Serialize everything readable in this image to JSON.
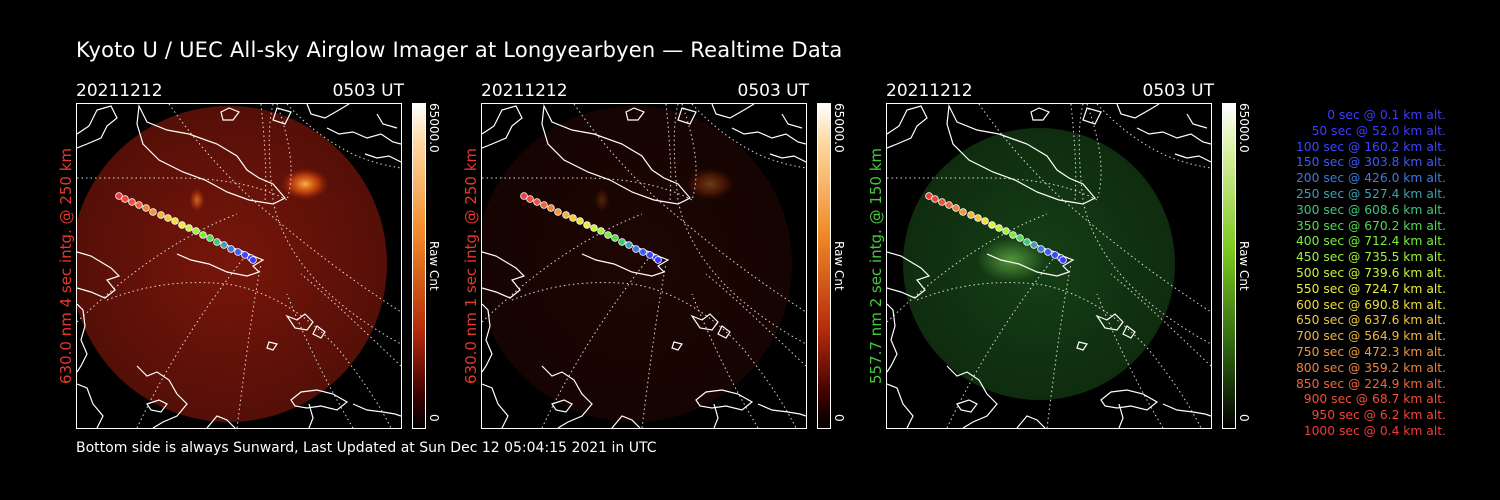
{
  "title": "Kyoto U / UEC All-sky Airglow Imager at Longyearbyen — Realtime Data",
  "footer": "Bottom side is always Sunward, Last Updated at Sun Dec 12 05:04:15 2021 in UTC",
  "panels": [
    {
      "date": "20211212",
      "time": "0503 UT",
      "side_label": "630.0 nm 4 sec intg. @ 250 km",
      "side_color": "#e8382a",
      "colorbar_max": "65000.0",
      "colorbar_unit": "Raw Cnt",
      "colorbar_min": "0",
      "tone": "red",
      "brightness": "high"
    },
    {
      "date": "20211212",
      "time": "0503 UT",
      "side_label": "630.0 nm 1 sec intg. @ 250 km",
      "side_color": "#e8382a",
      "colorbar_max": "65000.0",
      "colorbar_unit": "Raw Cnt",
      "colorbar_min": "0",
      "tone": "red",
      "brightness": "low"
    },
    {
      "date": "20211212",
      "time": "0503 UT",
      "side_label": "557.7 nm 2 sec intg. @ 150 km",
      "side_color": "#46c83c",
      "colorbar_max": "65000.0",
      "colorbar_unit": "Raw Cnt",
      "colorbar_min": "0",
      "tone": "green",
      "brightness": "mid"
    }
  ],
  "legend": [
    {
      "text": "0 sec @   0.1 km alt.",
      "color": "#3c3cff"
    },
    {
      "text": "50 sec @  52.0 km alt.",
      "color": "#3c3cff"
    },
    {
      "text": "100 sec @ 160.2 km alt.",
      "color": "#3c46ff"
    },
    {
      "text": "150 sec @ 303.8 km alt.",
      "color": "#3c5aff"
    },
    {
      "text": "200 sec @ 426.0 km alt.",
      "color": "#3c78e6"
    },
    {
      "text": "250 sec @ 527.4 km alt.",
      "color": "#3ca0b4"
    },
    {
      "text": "300 sec @ 608.6 km alt.",
      "color": "#3cc878"
    },
    {
      "text": "350 sec @ 670.2 km alt.",
      "color": "#50dc50"
    },
    {
      "text": "400 sec @ 712.4 km alt.",
      "color": "#78f03c"
    },
    {
      "text": "450 sec @ 735.5 km alt.",
      "color": "#a0f03c"
    },
    {
      "text": "500 sec @ 739.6 km alt.",
      "color": "#c8f03c"
    },
    {
      "text": "550 sec @ 724.7 km alt.",
      "color": "#e6f03c"
    },
    {
      "text": "600 sec @ 690.8 km alt.",
      "color": "#f0dc3c"
    },
    {
      "text": "650 sec @ 637.6 km alt.",
      "color": "#f0c83c"
    },
    {
      "text": "700 sec @ 564.9 km alt.",
      "color": "#f0b43c"
    },
    {
      "text": "750 sec @ 472.3 km alt.",
      "color": "#f0963c"
    },
    {
      "text": "800 sec @ 359.2 km alt.",
      "color": "#f0823c"
    },
    {
      "text": "850 sec @ 224.9 km alt.",
      "color": "#f0643c"
    },
    {
      "text": "900 sec @  68.7 km alt.",
      "color": "#f0503c"
    },
    {
      "text": "950 sec @   6.2 km alt.",
      "color": "#f0463c"
    },
    {
      "text": "1000 sec @   0.4 km alt.",
      "color": "#f03c3c"
    }
  ]
}
